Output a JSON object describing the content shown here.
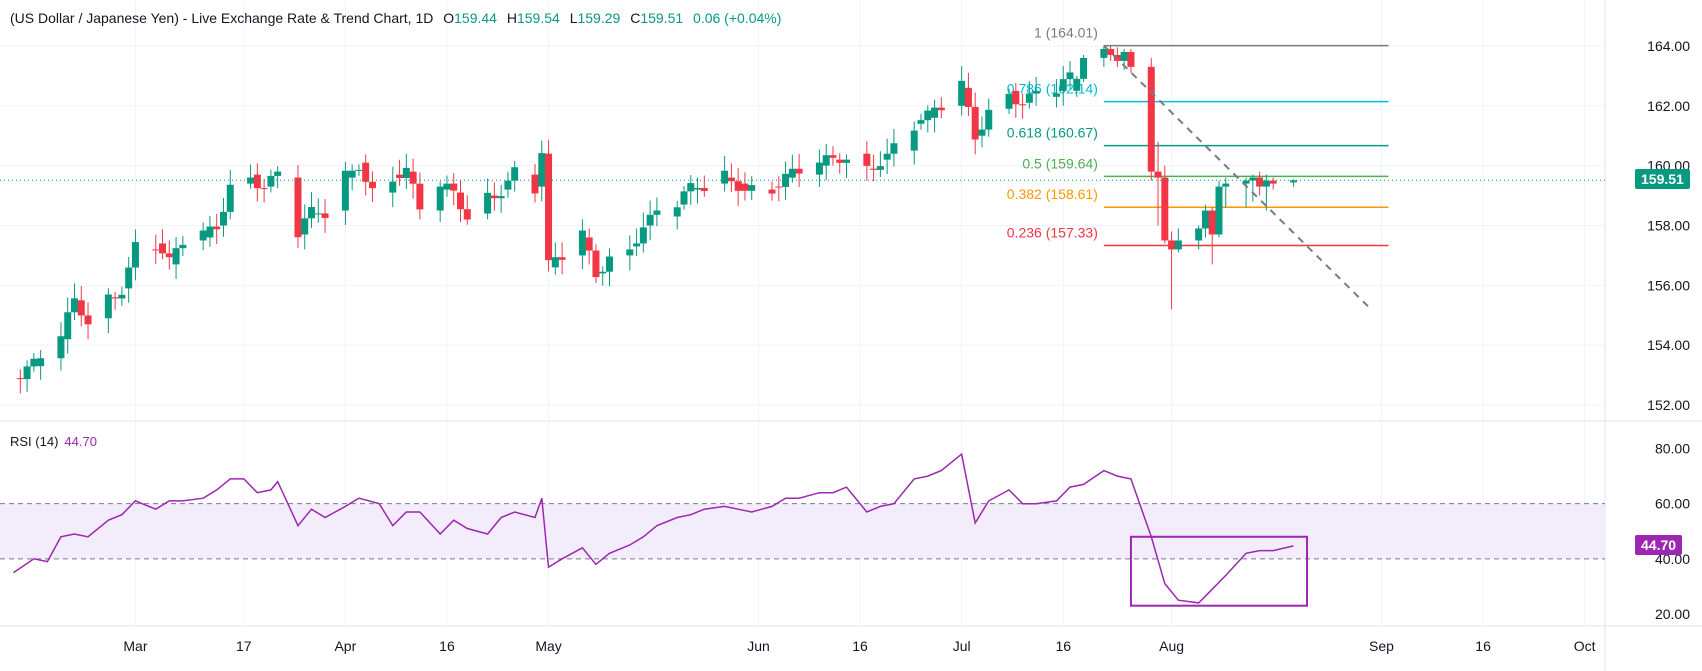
{
  "header": {
    "title": "(US Dollar / Japanese Yen) - Live Exchange Rate & Trend Chart, 1D",
    "o_label": "O",
    "o_value": "159.44",
    "h_label": "H",
    "h_value": "159.54",
    "l_label": "L",
    "l_value": "159.29",
    "c_label": "C",
    "c_value": "159.51",
    "change": "0.06 (+0.04%)"
  },
  "rsi_header": {
    "label": "RSI (14)",
    "value": "44.70"
  },
  "price_tag": {
    "value": "159.51",
    "color": "#089981"
  },
  "rsi_tag": {
    "value": "44.70",
    "color": "#9c27b0"
  },
  "colors": {
    "up": "#089981",
    "down": "#f23645",
    "rsi": "#9c27b0",
    "rsi_band": "#f3edfb"
  },
  "chart_data": [
    {
      "type": "candlestick",
      "name": "USD/JPY 1D",
      "x_ticks": [
        "Mar",
        "17",
        "Apr",
        "16",
        "May",
        "Jun",
        "16",
        "Jul",
        "16",
        "Aug",
        "Sep",
        "16",
        "Oct"
      ],
      "x_tick_dates": [
        "2024-03-01",
        "2024-03-17",
        "2024-04-01",
        "2024-04-16",
        "2024-05-01",
        "2024-06-01",
        "2024-06-16",
        "2024-07-01",
        "2024-07-16",
        "2024-08-01",
        "2024-09-01",
        "2024-09-16",
        "2024-10-01"
      ],
      "y_ticks": [
        152,
        154,
        156,
        158,
        160,
        162,
        164
      ],
      "ylim": [
        151.5,
        164.8
      ],
      "xlim": [
        "2024-02-10",
        "2024-10-04"
      ],
      "close_path": [
        [
          "2024-02-12",
          152.9
        ],
        [
          "2024-02-15",
          153.3
        ],
        [
          "2024-02-19",
          154.2
        ],
        [
          "2024-02-21",
          155.5
        ],
        [
          "2024-02-23",
          154.9
        ],
        [
          "2024-02-26",
          155.6
        ],
        [
          "2024-02-28",
          155.9
        ],
        [
          "2024-03-01",
          157.2
        ],
        [
          "2024-03-04",
          157.4
        ],
        [
          "2024-03-06",
          156.7
        ],
        [
          "2024-03-08",
          157.5
        ],
        [
          "2024-03-11",
          157.6
        ],
        [
          "2024-03-13",
          158.0
        ],
        [
          "2024-03-15",
          159.4
        ],
        [
          "2024-03-18",
          159.7
        ],
        [
          "2024-03-20",
          159.3
        ],
        [
          "2024-03-22",
          159.6
        ],
        [
          "2024-03-25",
          157.7
        ],
        [
          "2024-03-27",
          158.4
        ],
        [
          "2024-03-29",
          158.5
        ],
        [
          "2024-04-01",
          159.6
        ],
        [
          "2024-04-03",
          160.1
        ],
        [
          "2024-04-05",
          159.1
        ],
        [
          "2024-04-08",
          159.7
        ],
        [
          "2024-04-10",
          159.8
        ],
        [
          "2024-04-12",
          158.5
        ],
        [
          "2024-04-15",
          159.2
        ],
        [
          "2024-04-17",
          159.1
        ],
        [
          "2024-04-19",
          158.4
        ],
        [
          "2024-04-22",
          159.0
        ],
        [
          "2024-04-24",
          159.2
        ],
        [
          "2024-04-26",
          159.7
        ],
        [
          "2024-04-29",
          159.3
        ],
        [
          "2024-04-30",
          160.4
        ],
        [
          "2024-05-01",
          156.6
        ],
        [
          "2024-05-03",
          157.0
        ],
        [
          "2024-05-06",
          157.6
        ],
        [
          "2024-05-08",
          156.4
        ],
        [
          "2024-05-10",
          157.0
        ],
        [
          "2024-05-13",
          157.3
        ],
        [
          "2024-05-15",
          158.0
        ],
        [
          "2024-05-17",
          158.3
        ],
        [
          "2024-05-20",
          158.7
        ],
        [
          "2024-05-22",
          159.2
        ],
        [
          "2024-05-24",
          159.4
        ],
        [
          "2024-05-27",
          159.6
        ],
        [
          "2024-05-29",
          159.4
        ],
        [
          "2024-05-31",
          159.2
        ],
        [
          "2024-06-03",
          159.3
        ],
        [
          "2024-06-05",
          159.6
        ],
        [
          "2024-06-07",
          159.7
        ],
        [
          "2024-06-10",
          160.0
        ],
        [
          "2024-06-12",
          160.2
        ],
        [
          "2024-06-14",
          160.4
        ],
        [
          "2024-06-17",
          159.9
        ],
        [
          "2024-06-19",
          160.2
        ],
        [
          "2024-06-21",
          160.5
        ],
        [
          "2024-06-24",
          161.4
        ],
        [
          "2024-06-26",
          161.6
        ],
        [
          "2024-06-28",
          162.0
        ],
        [
          "2024-07-01",
          162.6
        ],
        [
          "2024-07-03",
          161.0
        ],
        [
          "2024-07-05",
          161.9
        ],
        [
          "2024-07-08",
          162.5
        ],
        [
          "2024-07-10",
          162.1
        ],
        [
          "2024-07-12",
          162.3
        ],
        [
          "2024-07-15",
          162.5
        ],
        [
          "2024-07-17",
          162.9
        ],
        [
          "2024-07-19",
          163.6
        ],
        [
          "2024-07-22",
          163.9
        ],
        [
          "2024-07-24",
          163.6
        ],
        [
          "2024-07-26",
          163.8
        ],
        [
          "2024-07-29",
          159.8
        ],
        [
          "2024-07-31",
          158.0
        ],
        [
          "2024-08-02",
          157.5
        ],
        [
          "2024-08-05",
          157.2
        ],
        [
          "2024-08-07",
          157.6
        ],
        [
          "2024-08-09",
          158.1
        ],
        [
          "2024-08-12",
          158.9
        ],
        [
          "2024-08-14",
          159.1
        ],
        [
          "2024-08-16",
          158.9
        ],
        [
          "2024-08-19",
          159.2
        ],
        [
          "2024-08-21",
          159.51
        ]
      ],
      "candles_recent": [
        {
          "date": "2024-07-18",
          "o": 162.5,
          "h": 163.0,
          "l": 162.3,
          "c": 162.9
        },
        {
          "date": "2024-07-19",
          "o": 162.9,
          "h": 163.7,
          "l": 162.8,
          "c": 163.6
        },
        {
          "date": "2024-07-22",
          "o": 163.6,
          "h": 164.01,
          "l": 163.3,
          "c": 163.9
        },
        {
          "date": "2024-07-23",
          "o": 163.9,
          "h": 164.0,
          "l": 163.5,
          "c": 163.7
        },
        {
          "date": "2024-07-24",
          "o": 163.7,
          "h": 163.95,
          "l": 163.3,
          "c": 163.5
        },
        {
          "date": "2024-07-25",
          "o": 163.5,
          "h": 163.9,
          "l": 163.2,
          "c": 163.8
        },
        {
          "date": "2024-07-26",
          "o": 163.8,
          "h": 163.9,
          "l": 163.1,
          "c": 163.3
        },
        {
          "date": "2024-07-29",
          "o": 163.3,
          "h": 163.6,
          "l": 159.5,
          "c": 159.8
        },
        {
          "date": "2024-07-30",
          "o": 159.8,
          "h": 160.8,
          "l": 158.0,
          "c": 159.6
        },
        {
          "date": "2024-07-31",
          "o": 159.6,
          "h": 160.0,
          "l": 157.4,
          "c": 157.5
        },
        {
          "date": "2024-08-01",
          "o": 157.5,
          "h": 157.8,
          "l": 155.2,
          "c": 157.2
        },
        {
          "date": "2024-08-02",
          "o": 157.2,
          "h": 157.9,
          "l": 157.1,
          "c": 157.5
        },
        {
          "date": "2024-08-05",
          "o": 157.5,
          "h": 158.0,
          "l": 157.2,
          "c": 157.9
        },
        {
          "date": "2024-08-06",
          "o": 157.9,
          "h": 158.7,
          "l": 157.6,
          "c": 158.5
        },
        {
          "date": "2024-08-07",
          "o": 158.5,
          "h": 158.6,
          "l": 156.7,
          "c": 157.7
        },
        {
          "date": "2024-08-08",
          "o": 157.7,
          "h": 159.5,
          "l": 157.6,
          "c": 159.3
        },
        {
          "date": "2024-08-09",
          "o": 159.3,
          "h": 159.6,
          "l": 158.6,
          "c": 159.4
        },
        {
          "date": "2024-08-12",
          "o": 159.4,
          "h": 159.6,
          "l": 158.6,
          "c": 159.5
        },
        {
          "date": "2024-08-13",
          "o": 159.5,
          "h": 159.7,
          "l": 158.8,
          "c": 159.6
        },
        {
          "date": "2024-08-14",
          "o": 159.6,
          "h": 159.8,
          "l": 159.0,
          "c": 159.3
        },
        {
          "date": "2024-08-15",
          "o": 159.3,
          "h": 159.7,
          "l": 158.5,
          "c": 159.5
        },
        {
          "date": "2024-08-16",
          "o": 159.5,
          "h": 159.6,
          "l": 159.2,
          "c": 159.4
        },
        {
          "date": "2024-08-19",
          "o": 159.44,
          "h": 159.54,
          "l": 159.29,
          "c": 159.51
        }
      ],
      "current_price": 159.51,
      "fibonacci": {
        "start_date": "2024-07-22",
        "end_date": "2024-08-19",
        "levels": [
          {
            "label": "1 (164.01)",
            "value": 164.01,
            "color": "#787b86"
          },
          {
            "label": "0.786 (162.14)",
            "value": 162.14,
            "color": "#00bcd4"
          },
          {
            "label": "0.618 (160.67)",
            "value": 160.67,
            "color": "#089981"
          },
          {
            "label": "0.5 (159.64)",
            "value": 159.64,
            "color": "#4caf50"
          },
          {
            "label": "0.382 (158.61)",
            "value": 158.61,
            "color": "#ff9800"
          },
          {
            "label": "0.236 (157.33)",
            "value": 157.33,
            "color": "#f23645"
          }
        ]
      },
      "trend_line": {
        "from": [
          "2024-07-22",
          164.01
        ],
        "to": [
          "2024-08-30",
          155.3
        ],
        "style": "dashed",
        "color": "#787b86"
      }
    },
    {
      "type": "line",
      "name": "RSI (14)",
      "y_ticks": [
        20,
        40,
        60,
        80
      ],
      "ylim": [
        16,
        86
      ],
      "band": [
        40,
        60
      ],
      "series": [
        {
          "name": "RSI (14)",
          "points": [
            [
              "2024-02-12",
              35
            ],
            [
              "2024-02-15",
              40
            ],
            [
              "2024-02-17",
              39
            ],
            [
              "2024-02-19",
              48
            ],
            [
              "2024-02-21",
              49
            ],
            [
              "2024-02-23",
              48
            ],
            [
              "2024-02-26",
              54
            ],
            [
              "2024-02-28",
              56
            ],
            [
              "2024-03-01",
              61
            ],
            [
              "2024-03-04",
              58
            ],
            [
              "2024-03-06",
              61
            ],
            [
              "2024-03-08",
              61
            ],
            [
              "2024-03-11",
              62
            ],
            [
              "2024-03-13",
              65
            ],
            [
              "2024-03-15",
              69
            ],
            [
              "2024-03-17",
              69
            ],
            [
              "2024-03-19",
              64
            ],
            [
              "2024-03-21",
              65
            ],
            [
              "2024-03-22",
              68
            ],
            [
              "2024-03-25",
              52
            ],
            [
              "2024-03-27",
              58
            ],
            [
              "2024-03-29",
              55
            ],
            [
              "2024-04-01",
              59
            ],
            [
              "2024-04-03",
              62
            ],
            [
              "2024-04-06",
              60
            ],
            [
              "2024-04-08",
              52
            ],
            [
              "2024-04-10",
              57
            ],
            [
              "2024-04-12",
              57
            ],
            [
              "2024-04-15",
              49
            ],
            [
              "2024-04-17",
              54
            ],
            [
              "2024-04-19",
              51
            ],
            [
              "2024-04-22",
              49
            ],
            [
              "2024-04-24",
              55
            ],
            [
              "2024-04-26",
              57
            ],
            [
              "2024-04-29",
              55
            ],
            [
              "2024-04-30",
              62
            ],
            [
              "2024-05-01",
              37
            ],
            [
              "2024-05-03",
              40
            ],
            [
              "2024-05-06",
              44
            ],
            [
              "2024-05-08",
              38
            ],
            [
              "2024-05-10",
              42
            ],
            [
              "2024-05-13",
              45
            ],
            [
              "2024-05-15",
              48
            ],
            [
              "2024-05-17",
              52
            ],
            [
              "2024-05-20",
              55
            ],
            [
              "2024-05-22",
              56
            ],
            [
              "2024-05-24",
              58
            ],
            [
              "2024-05-27",
              59
            ],
            [
              "2024-05-29",
              58
            ],
            [
              "2024-05-31",
              57
            ],
            [
              "2024-06-03",
              59
            ],
            [
              "2024-06-05",
              62
            ],
            [
              "2024-06-07",
              62
            ],
            [
              "2024-06-10",
              64
            ],
            [
              "2024-06-12",
              64
            ],
            [
              "2024-06-14",
              66
            ],
            [
              "2024-06-17",
              57
            ],
            [
              "2024-06-19",
              59
            ],
            [
              "2024-06-21",
              60
            ],
            [
              "2024-06-24",
              69
            ],
            [
              "2024-06-26",
              70
            ],
            [
              "2024-06-28",
              72
            ],
            [
              "2024-07-01",
              78
            ],
            [
              "2024-07-03",
              53
            ],
            [
              "2024-07-05",
              61
            ],
            [
              "2024-07-08",
              65
            ],
            [
              "2024-07-10",
              60
            ],
            [
              "2024-07-12",
              60
            ],
            [
              "2024-07-15",
              61
            ],
            [
              "2024-07-17",
              66
            ],
            [
              "2024-07-19",
              67
            ],
            [
              "2024-07-22",
              72
            ],
            [
              "2024-07-24",
              70
            ],
            [
              "2024-07-26",
              69
            ],
            [
              "2024-07-29",
              48
            ],
            [
              "2024-07-31",
              31
            ],
            [
              "2024-08-02",
              25
            ],
            [
              "2024-08-05",
              24
            ],
            [
              "2024-08-07",
              29
            ],
            [
              "2024-08-09",
              34
            ],
            [
              "2024-08-12",
              42
            ],
            [
              "2024-08-14",
              43
            ],
            [
              "2024-08-16",
              43
            ],
            [
              "2024-08-19",
              44.7
            ]
          ]
        }
      ],
      "highlight_box": {
        "x_range": [
          "2024-07-26",
          "2024-08-21"
        ],
        "y_range": [
          23,
          48
        ],
        "color": "#9c27b0"
      }
    }
  ]
}
